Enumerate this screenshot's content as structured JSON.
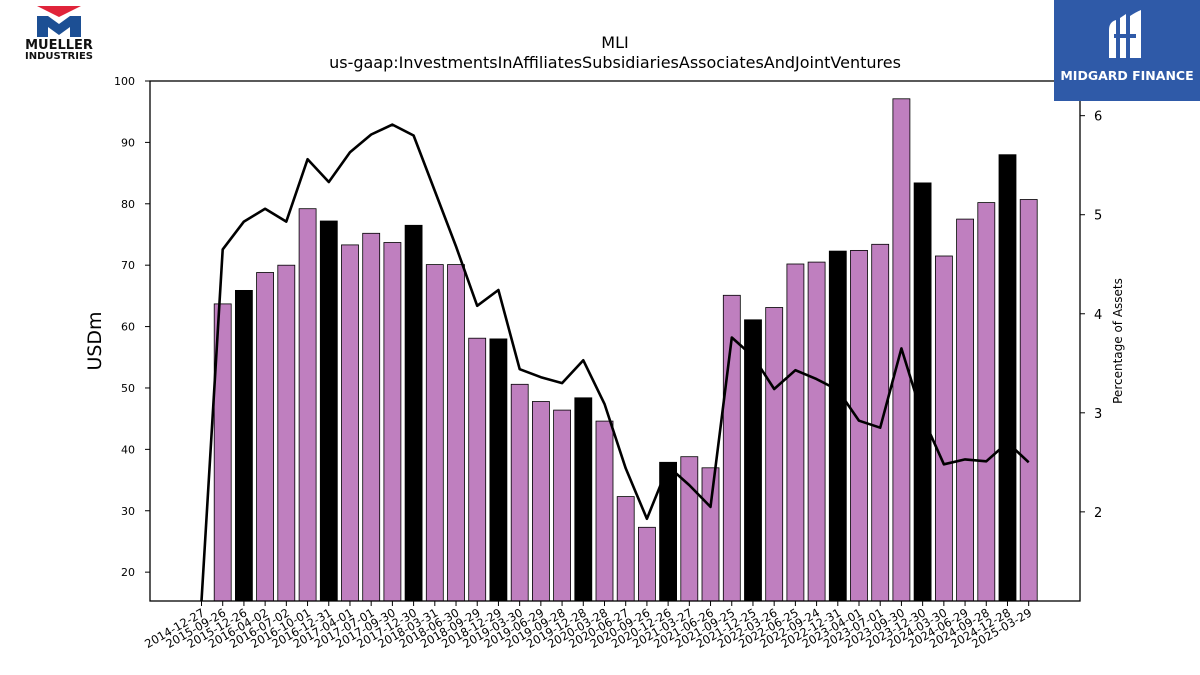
{
  "logos": {
    "company_line1": "MUELLER",
    "company_line2": "INDUSTRIES",
    "publisher": "MIDGARD FINANCE"
  },
  "chart_data": {
    "type": "bar",
    "title": "MLI",
    "subtitle": "us-gaap:InvestmentsInAffiliatesSubsidiariesAssociatesAndJointVentures",
    "ylabel": "USDm",
    "y2label": "Percentage of Assets",
    "ylim": [
      15.3,
      100
    ],
    "y2lim": [
      1.1,
      6.35
    ],
    "yticks": [
      20,
      30,
      40,
      50,
      60,
      70,
      80,
      90,
      100
    ],
    "y2ticks": [
      2,
      3,
      4,
      5,
      6
    ],
    "categories": [
      "2014-12-27",
      "2015-09-26",
      "2015-12-26",
      "2016-04-02",
      "2016-07-02",
      "2016-10-01",
      "2016-12-31",
      "2017-04-01",
      "2017-07-01",
      "2017-09-30",
      "2017-12-30",
      "2018-03-31",
      "2018-06-30",
      "2018-09-29",
      "2018-12-29",
      "2019-03-30",
      "2019-06-29",
      "2019-09-28",
      "2019-12-28",
      "2020-03-28",
      "2020-06-27",
      "2020-09-26",
      "2020-12-26",
      "2021-03-27",
      "2021-06-26",
      "2021-09-25",
      "2021-12-25",
      "2022-03-26",
      "2022-06-25",
      "2022-09-24",
      "2022-12-31",
      "2023-04-01",
      "2023-07-01",
      "2023-09-30",
      "2023-12-30",
      "2024-03-30",
      "2024-06-29",
      "2024-09-28",
      "2024-12-28",
      "2025-03-29"
    ],
    "series": [
      {
        "kind": "bar",
        "values": [
          null,
          63.7,
          65.9,
          68.8,
          70.0,
          79.2,
          77.2,
          73.3,
          75.2,
          73.7,
          76.5,
          70.1,
          70.1,
          58.1,
          58.0,
          50.6,
          47.8,
          46.4,
          48.4,
          44.6,
          32.3,
          27.3,
          37.9,
          38.8,
          37.0,
          65.1,
          61.1,
          63.1,
          70.2,
          70.5,
          72.3,
          72.4,
          73.4,
          97.1,
          83.4,
          71.5,
          77.5,
          80.2,
          88.0,
          80.7
        ],
        "highlight": [
          false,
          false,
          true,
          false,
          false,
          false,
          true,
          false,
          false,
          false,
          true,
          false,
          false,
          false,
          true,
          false,
          false,
          false,
          true,
          false,
          false,
          false,
          true,
          false,
          false,
          false,
          true,
          false,
          false,
          false,
          true,
          false,
          false,
          false,
          true,
          false,
          false,
          false,
          true,
          false
        ]
      },
      {
        "kind": "line",
        "axis": "right",
        "values": [
          1.1,
          4.65,
          4.93,
          5.06,
          4.93,
          5.56,
          5.33,
          5.63,
          5.81,
          5.91,
          5.8,
          5.24,
          4.68,
          4.08,
          4.24,
          3.44,
          3.36,
          3.3,
          3.53,
          3.09,
          2.44,
          1.93,
          2.46,
          2.27,
          2.05,
          3.76,
          3.57,
          3.24,
          3.43,
          3.34,
          3.23,
          2.92,
          2.85,
          3.65,
          2.96,
          2.48,
          2.53,
          2.51,
          2.7,
          2.5
        ]
      }
    ],
    "colors": {
      "bar": "#bf7fbf",
      "bar_highlight": "#000000",
      "line": "#000000",
      "bar_edge": "#000000"
    },
    "grid": false,
    "legend": "none"
  }
}
